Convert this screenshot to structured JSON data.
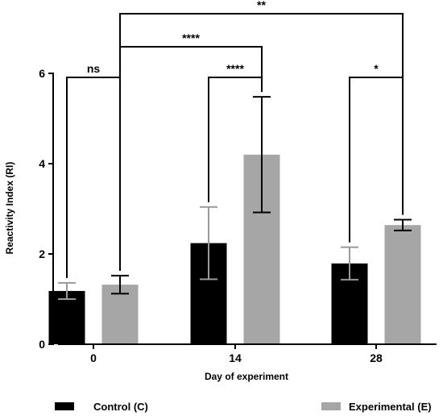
{
  "chart_data": {
    "type": "bar",
    "title": "",
    "xlabel": "Day of experiment",
    "ylabel": "Reactivity Index (RI)",
    "categories": [
      "0",
      "14",
      "28"
    ],
    "ylim": [
      0,
      6
    ],
    "yticks": [
      0,
      2,
      4,
      6
    ],
    "grid": false,
    "legend_position": "bottom",
    "series": [
      {
        "name": "Control (C)",
        "color": "#000000",
        "error_color": "#999999",
        "values": [
          1.18,
          2.24,
          1.79
        ],
        "errors": [
          0.18,
          0.8,
          0.36
        ]
      },
      {
        "name": "Experimental (E)",
        "color": "#a6a6a6",
        "error_color": "#000000",
        "values": [
          1.32,
          4.2,
          2.64
        ],
        "errors": [
          0.2,
          1.28,
          0.12
        ]
      }
    ],
    "significance": [
      {
        "label": "ns",
        "from": {
          "series": 0,
          "category": 0
        },
        "to": {
          "series": 1,
          "category": 0
        },
        "level": 1
      },
      {
        "label": "****",
        "from": {
          "series": 0,
          "category": 1
        },
        "to": {
          "series": 1,
          "category": 1
        },
        "level": 1
      },
      {
        "label": "*",
        "from": {
          "series": 0,
          "category": 2
        },
        "to": {
          "series": 1,
          "category": 2
        },
        "level": 1
      },
      {
        "label": "****",
        "from": {
          "series": 1,
          "category": 0
        },
        "to": {
          "series": 1,
          "category": 1
        },
        "level": 2
      },
      {
        "label": "**",
        "from": {
          "series": 1,
          "category": 0
        },
        "to": {
          "series": 1,
          "category": 2
        },
        "level": 3
      }
    ]
  }
}
